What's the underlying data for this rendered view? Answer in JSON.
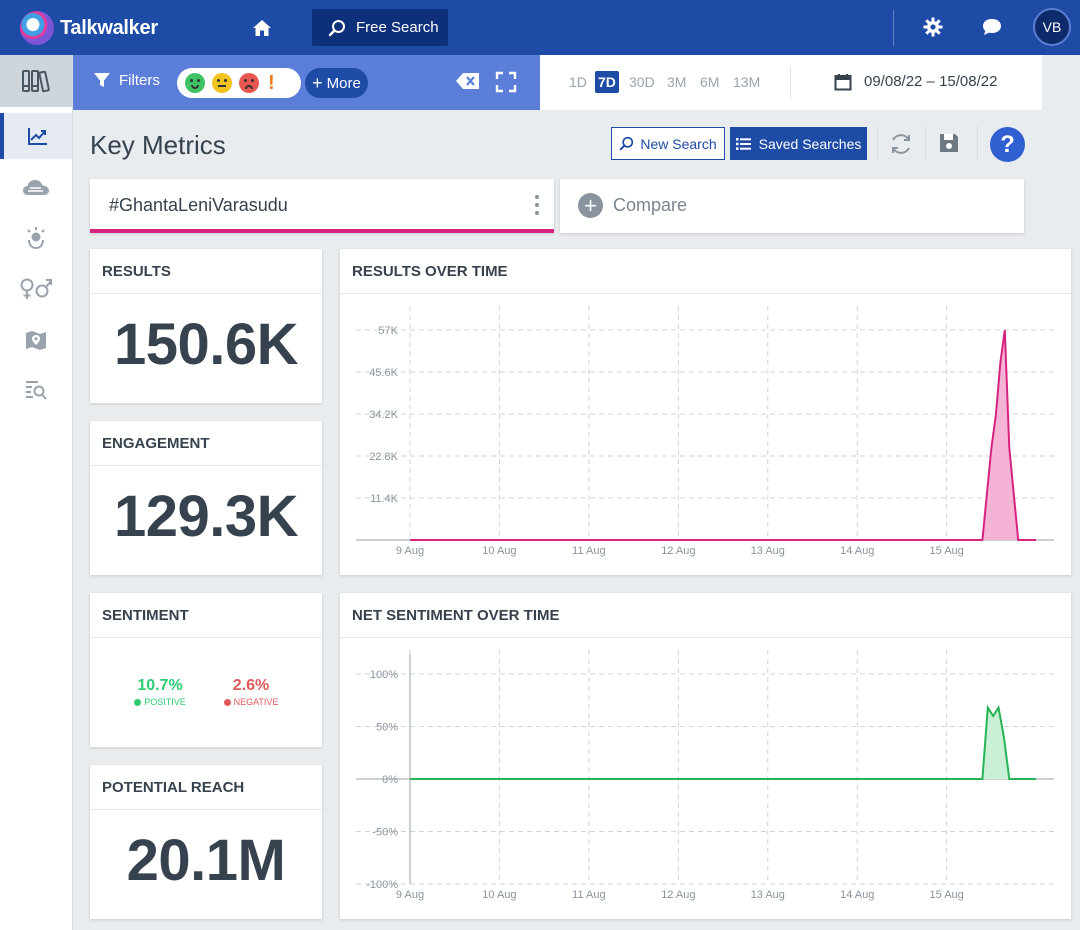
{
  "app": {
    "name": "Talkwalker"
  },
  "topbar": {
    "free_search_label": "Free Search",
    "avatar_initials": "VB"
  },
  "filterbar": {
    "filters_label": "Filters",
    "more_label": "More"
  },
  "datebar": {
    "ranges": [
      "1D",
      "7D",
      "30D",
      "3M",
      "6M",
      "13M"
    ],
    "active_range": "7D",
    "date_range": "09/08/22 – 15/08/22"
  },
  "header": {
    "title": "Key Metrics",
    "new_search_label": "New Search",
    "saved_searches_label": "Saved Searches",
    "help_label": "?"
  },
  "query": {
    "name": "#GhantaLeniVarasudu",
    "compare_label": "Compare"
  },
  "metrics": {
    "results": {
      "title": "RESULTS",
      "value": "150.6K"
    },
    "engagement": {
      "title": "ENGAGEMENT",
      "value": "129.3K"
    },
    "sentiment": {
      "title": "SENTIMENT",
      "positive_value": "10.7%",
      "positive_label": "POSITIVE",
      "negative_value": "2.6%",
      "negative_label": "NEGATIVE"
    },
    "reach": {
      "title": "POTENTIAL REACH",
      "value": "20.1M"
    }
  },
  "colors": {
    "brand": "#1e4ba6",
    "accent": "#d6237f",
    "positive": "#2ecc71",
    "negative": "#e05a5a"
  },
  "chart_data": [
    {
      "type": "area",
      "title": "RESULTS OVER TIME",
      "x_ticks": [
        "9 Aug",
        "10 Aug",
        "11 Aug",
        "12 Aug",
        "13 Aug",
        "14 Aug",
        "15 Aug"
      ],
      "y_ticks": [
        "11.4K",
        "22.8K",
        "34.2K",
        "45.6K",
        "57K"
      ],
      "ylim": [
        0,
        57000
      ],
      "x": [
        0,
        6.4,
        6.5,
        6.55,
        6.6,
        6.65,
        6.7,
        6.8,
        7.0
      ],
      "values": [
        0,
        0,
        25000,
        34000,
        48000,
        57000,
        25000,
        0,
        0
      ],
      "color": "#d6237f",
      "fill": "#f5b3d6"
    },
    {
      "type": "area",
      "title": "NET SENTIMENT OVER TIME",
      "x_ticks": [
        "9 Aug",
        "10 Aug",
        "11 Aug",
        "12 Aug",
        "13 Aug",
        "14 Aug",
        "15 Aug"
      ],
      "y_ticks": [
        "100%",
        "50%",
        "0%",
        "-50%",
        "-100%"
      ],
      "ylim": [
        -100,
        100
      ],
      "x": [
        0,
        6.4,
        6.46,
        6.52,
        6.58,
        6.64,
        6.7,
        6.8,
        7.0
      ],
      "values": [
        0,
        0,
        68,
        60,
        68,
        40,
        0,
        0,
        0
      ],
      "color": "#27b356",
      "fill": "#c9f0d4"
    }
  ]
}
